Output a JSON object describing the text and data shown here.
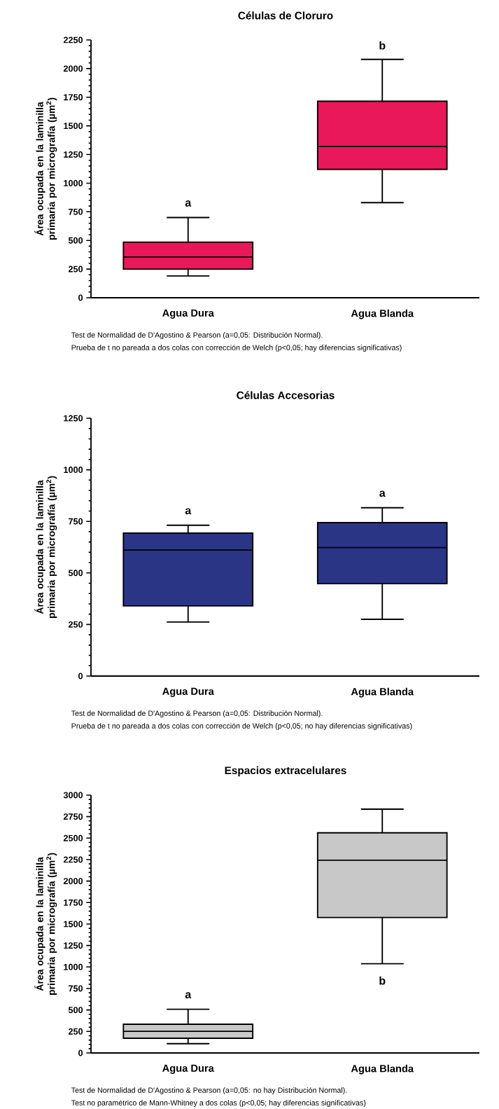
{
  "chart_data": [
    {
      "type": "box",
      "title": "Células de Cloruro",
      "ylabel": "Área ocupada en la laminilla primaria por micrografía (µm$^{2}$)",
      "categories": [
        "Agua Dura",
        "Agua Blanda"
      ],
      "ylim": [
        0,
        2250
      ],
      "yticks": [
        0,
        250,
        500,
        750,
        1000,
        1250,
        1500,
        1750,
        2000,
        2250
      ],
      "series": [
        {
          "color": "#e8185a",
          "boxes": [
            {
              "low": 190,
              "q1": 250,
              "median": 355,
              "q3": 485,
              "high": 700
            },
            {
              "low": 830,
              "q1": 1120,
              "median": 1320,
              "q3": 1715,
              "high": 2080
            }
          ]
        }
      ],
      "annotations": [
        "a",
        "b",
        "Test de Normalidad de D'Agostino & Pearson (a=0,05: Distribución Normal).",
        "Prueba de t no pareada a dos colas con corrección de Welch (p<0,05; hay diferencias significativas)"
      ]
    },
    {
      "type": "box",
      "title": "Células Accesorias",
      "ylabel": "Área ocupada en la laminilla primaria por micrografía (µm$^{2}$)",
      "categories": [
        "Agua Dura",
        "Agua Blanda"
      ],
      "ylim": [
        0,
        1250
      ],
      "yticks": [
        0,
        250,
        500,
        750,
        1000,
        1250
      ],
      "series": [
        {
          "color": "#2b3585",
          "boxes": [
            {
              "low": 262,
              "q1": 340,
              "median": 611,
              "q3": 693,
              "high": 731
            },
            {
              "low": 275,
              "q1": 448,
              "median": 623,
              "q3": 744,
              "high": 816
            }
          ]
        }
      ],
      "annotations": [
        "a",
        "a",
        "Test de Normalidad de D'Agostino & Pearson (a=0,05: Distribución Normal).",
        "Prueba de t no pareada a dos colas con corrección de Welch (p<0,05; no hay diferencias significativas)"
      ]
    },
    {
      "type": "box",
      "title": "Espacios extracelulares",
      "ylabel": "Área ocupada en la laminilla primaria por micrografía (µm$^{2}$)",
      "categories": [
        "Agua Dura",
        "Agua Blanda"
      ],
      "ylim": [
        0,
        3000
      ],
      "yticks": [
        0,
        250,
        500,
        750,
        1000,
        1250,
        1500,
        1750,
        2000,
        2250,
        2500,
        2750,
        3000
      ],
      "series": [
        {
          "color": "#c8c8c8",
          "boxes": [
            {
              "low": 108,
              "q1": 171,
              "median": 252,
              "q3": 334,
              "high": 508
            },
            {
              "low": 1038,
              "q1": 1576,
              "median": 2243,
              "q3": 2562,
              "high": 2837
            }
          ]
        }
      ],
      "annotations": [
        "a",
        "b",
        "Test de Normalidad de D'Agostino & Pearson (a=0,05: no hay Distribución Normal).",
        "Test no paramétrico de Mann-Whitney a dos colas (p<0,05; hay diferencias significativas)"
      ]
    }
  ]
}
